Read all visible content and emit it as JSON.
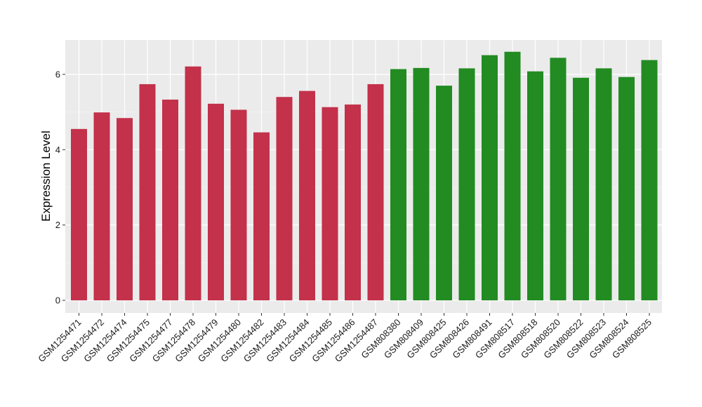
{
  "chart_data": {
    "type": "bar",
    "title": "",
    "xlabel": "",
    "ylabel": "Expression Level",
    "ylim": [
      0,
      7
    ],
    "yticks": [
      0,
      2,
      4,
      6
    ],
    "grid": true,
    "legend": "none",
    "background": "#ebebeb",
    "categories": [
      "GSM1254471",
      "GSM1254472",
      "GSM1254474",
      "GSM1254475",
      "GSM1254477",
      "GSM1254478",
      "GSM1254479",
      "GSM1254480",
      "GSM1254482",
      "GSM1254483",
      "GSM1254484",
      "GSM1254485",
      "GSM1254486",
      "GSM1254487",
      "GSM808380",
      "GSM808409",
      "GSM808425",
      "GSM808426",
      "GSM808491",
      "GSM808517",
      "GSM808518",
      "GSM808520",
      "GSM808522",
      "GSM808523",
      "GSM808524",
      "GSM808525"
    ],
    "values": [
      4.55,
      4.99,
      4.84,
      5.74,
      5.33,
      6.21,
      5.22,
      5.06,
      4.46,
      5.4,
      5.56,
      5.13,
      5.2,
      5.74,
      6.14,
      6.17,
      5.7,
      6.16,
      6.51,
      6.6,
      6.08,
      6.44,
      5.91,
      6.16,
      5.93,
      6.38
    ],
    "bar_colors": [
      "#c3314a",
      "#c3314a",
      "#c3314a",
      "#c3314a",
      "#c3314a",
      "#c3314a",
      "#c3314a",
      "#c3314a",
      "#c3314a",
      "#c3314a",
      "#c3314a",
      "#c3314a",
      "#c3314a",
      "#c3314a",
      "#228b22",
      "#228b22",
      "#228b22",
      "#228b22",
      "#228b22",
      "#228b22",
      "#228b22",
      "#228b22",
      "#228b22",
      "#228b22",
      "#228b22",
      "#228b22"
    ]
  }
}
